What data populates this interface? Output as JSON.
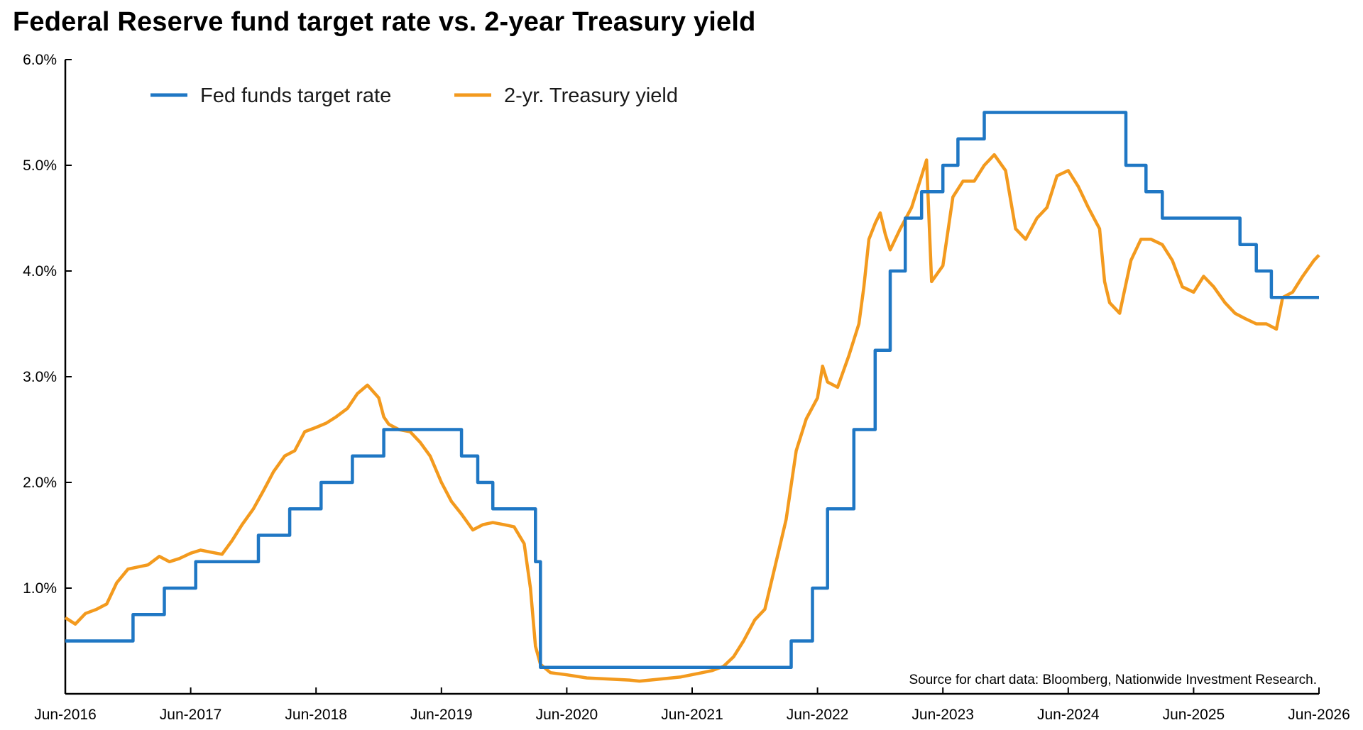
{
  "chart_data": {
    "type": "line",
    "title": "Federal Reserve fund target rate vs. 2-year Treasury yield",
    "xlabel": "",
    "ylabel": "",
    "x_ticks": [
      "Jun-2016",
      "Jun-2017",
      "Jun-2018",
      "Jun-2019",
      "Jun-2020",
      "Jun-2021",
      "Jun-2022",
      "Jun-2023",
      "Jun-2024",
      "Jun-2025",
      "Jun-2026"
    ],
    "xlim": [
      2016.42,
      2026.42
    ],
    "y_ticks": [
      "1.0%",
      "2.0%",
      "3.0%",
      "4.0%",
      "5.0%",
      "6.0%"
    ],
    "y_tick_values": [
      1,
      2,
      3,
      4,
      5,
      6
    ],
    "ylim": [
      0,
      6
    ],
    "grid": false,
    "legend_position": "top-left",
    "source_note": "Source for chart data: Bloomberg, Nationwide Investment Research.",
    "series": [
      {
        "name": "Fed funds target rate",
        "color": "#1f77c4",
        "step": true,
        "points": [
          [
            2016.42,
            0.5
          ],
          [
            2016.96,
            0.75
          ],
          [
            2017.21,
            1.0
          ],
          [
            2017.46,
            1.25
          ],
          [
            2017.96,
            1.5
          ],
          [
            2018.21,
            1.75
          ],
          [
            2018.46,
            2.0
          ],
          [
            2018.71,
            2.25
          ],
          [
            2018.96,
            2.5
          ],
          [
            2019.58,
            2.25
          ],
          [
            2019.71,
            2.0
          ],
          [
            2019.83,
            1.75
          ],
          [
            2020.17,
            1.25
          ],
          [
            2020.21,
            0.25
          ],
          [
            2022.21,
            0.5
          ],
          [
            2022.38,
            1.0
          ],
          [
            2022.5,
            1.75
          ],
          [
            2022.71,
            2.5
          ],
          [
            2022.88,
            3.25
          ],
          [
            2023.0,
            4.0
          ],
          [
            2023.12,
            4.5
          ],
          [
            2023.25,
            4.75
          ],
          [
            2023.42,
            5.0
          ],
          [
            2023.54,
            5.25
          ],
          [
            2023.75,
            5.5
          ],
          [
            2024.88,
            5.0
          ],
          [
            2025.04,
            4.75
          ],
          [
            2025.17,
            4.5
          ],
          [
            2025.79,
            4.25
          ],
          [
            2025.92,
            4.0
          ],
          [
            2026.04,
            3.75
          ],
          [
            2026.42,
            3.75
          ]
        ]
      },
      {
        "name": "2-yr. Treasury yield",
        "color": "#f39a1e",
        "step": false,
        "points": [
          [
            2016.42,
            0.72
          ],
          [
            2016.5,
            0.66
          ],
          [
            2016.58,
            0.76
          ],
          [
            2016.67,
            0.8
          ],
          [
            2016.75,
            0.85
          ],
          [
            2016.83,
            1.05
          ],
          [
            2016.92,
            1.18
          ],
          [
            2017.0,
            1.2
          ],
          [
            2017.08,
            1.22
          ],
          [
            2017.17,
            1.3
          ],
          [
            2017.25,
            1.25
          ],
          [
            2017.33,
            1.28
          ],
          [
            2017.42,
            1.33
          ],
          [
            2017.5,
            1.36
          ],
          [
            2017.58,
            1.34
          ],
          [
            2017.67,
            1.32
          ],
          [
            2017.75,
            1.45
          ],
          [
            2017.83,
            1.6
          ],
          [
            2017.92,
            1.75
          ],
          [
            2018.0,
            1.92
          ],
          [
            2018.08,
            2.1
          ],
          [
            2018.17,
            2.25
          ],
          [
            2018.25,
            2.3
          ],
          [
            2018.33,
            2.48
          ],
          [
            2018.42,
            2.52
          ],
          [
            2018.5,
            2.56
          ],
          [
            2018.58,
            2.62
          ],
          [
            2018.67,
            2.7
          ],
          [
            2018.75,
            2.84
          ],
          [
            2018.83,
            2.92
          ],
          [
            2018.92,
            2.8
          ],
          [
            2018.96,
            2.62
          ],
          [
            2019.0,
            2.55
          ],
          [
            2019.08,
            2.5
          ],
          [
            2019.17,
            2.48
          ],
          [
            2019.25,
            2.38
          ],
          [
            2019.33,
            2.25
          ],
          [
            2019.42,
            2.0
          ],
          [
            2019.5,
            1.82
          ],
          [
            2019.58,
            1.7
          ],
          [
            2019.67,
            1.55
          ],
          [
            2019.75,
            1.6
          ],
          [
            2019.83,
            1.62
          ],
          [
            2019.92,
            1.6
          ],
          [
            2020.0,
            1.58
          ],
          [
            2020.08,
            1.42
          ],
          [
            2020.13,
            1.0
          ],
          [
            2020.17,
            0.45
          ],
          [
            2020.21,
            0.28
          ],
          [
            2020.29,
            0.2
          ],
          [
            2020.42,
            0.18
          ],
          [
            2020.58,
            0.15
          ],
          [
            2020.75,
            0.14
          ],
          [
            2020.92,
            0.13
          ],
          [
            2021.0,
            0.12
          ],
          [
            2021.17,
            0.14
          ],
          [
            2021.33,
            0.16
          ],
          [
            2021.5,
            0.2
          ],
          [
            2021.58,
            0.22
          ],
          [
            2021.67,
            0.26
          ],
          [
            2021.75,
            0.35
          ],
          [
            2021.83,
            0.5
          ],
          [
            2021.92,
            0.7
          ],
          [
            2022.0,
            0.8
          ],
          [
            2022.08,
            1.2
          ],
          [
            2022.17,
            1.65
          ],
          [
            2022.25,
            2.3
          ],
          [
            2022.33,
            2.6
          ],
          [
            2022.42,
            2.8
          ],
          [
            2022.46,
            3.1
          ],
          [
            2022.5,
            2.95
          ],
          [
            2022.58,
            2.9
          ],
          [
            2022.67,
            3.2
          ],
          [
            2022.75,
            3.5
          ],
          [
            2022.79,
            3.85
          ],
          [
            2022.83,
            4.3
          ],
          [
            2022.88,
            4.45
          ],
          [
            2022.92,
            4.55
          ],
          [
            2022.96,
            4.35
          ],
          [
            2023.0,
            4.2
          ],
          [
            2023.08,
            4.4
          ],
          [
            2023.17,
            4.6
          ],
          [
            2023.25,
            4.9
          ],
          [
            2023.29,
            5.05
          ],
          [
            2023.33,
            3.9
          ],
          [
            2023.42,
            4.05
          ],
          [
            2023.5,
            4.7
          ],
          [
            2023.58,
            4.85
          ],
          [
            2023.67,
            4.85
          ],
          [
            2023.75,
            5.0
          ],
          [
            2023.83,
            5.1
          ],
          [
            2023.92,
            4.95
          ],
          [
            2024.0,
            4.4
          ],
          [
            2024.08,
            4.3
          ],
          [
            2024.17,
            4.5
          ],
          [
            2024.25,
            4.6
          ],
          [
            2024.33,
            4.9
          ],
          [
            2024.42,
            4.95
          ],
          [
            2024.5,
            4.8
          ],
          [
            2024.58,
            4.6
          ],
          [
            2024.67,
            4.4
          ],
          [
            2024.71,
            3.9
          ],
          [
            2024.75,
            3.7
          ],
          [
            2024.83,
            3.6
          ],
          [
            2024.92,
            4.1
          ],
          [
            2025.0,
            4.3
          ],
          [
            2025.08,
            4.3
          ],
          [
            2025.17,
            4.25
          ],
          [
            2025.25,
            4.1
          ],
          [
            2025.33,
            3.85
          ],
          [
            2025.42,
            3.8
          ],
          [
            2025.5,
            3.95
          ],
          [
            2025.58,
            3.85
          ],
          [
            2025.67,
            3.7
          ],
          [
            2025.75,
            3.6
          ],
          [
            2025.83,
            3.55
          ],
          [
            2025.92,
            3.5
          ],
          [
            2026.0,
            3.5
          ],
          [
            2026.08,
            3.45
          ],
          [
            2026.13,
            3.75
          ],
          [
            2026.21,
            3.8
          ],
          [
            2026.29,
            3.95
          ],
          [
            2026.38,
            4.1
          ],
          [
            2026.42,
            4.15
          ]
        ]
      }
    ]
  }
}
